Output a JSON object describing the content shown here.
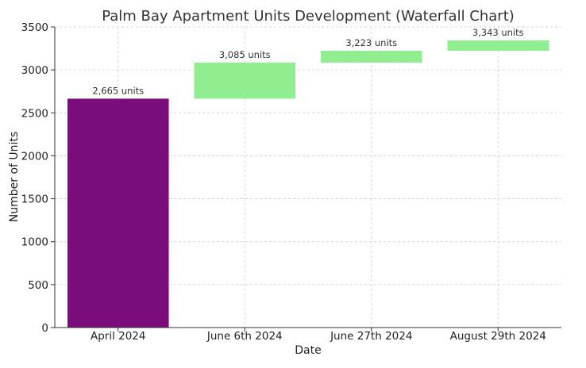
{
  "chart_data": {
    "type": "bar",
    "subtype": "waterfall",
    "title": "Palm Bay Apartment Units Development (Waterfall Chart)",
    "xlabel": "Date",
    "ylabel": "Number of Units",
    "ylim": [
      0,
      3500
    ],
    "yticks": [
      0,
      500,
      1000,
      1500,
      2000,
      2500,
      3000,
      3500
    ],
    "grid": true,
    "categories": [
      "April 2024",
      "June 6th 2024",
      "June 27th 2024",
      "August 29th 2024"
    ],
    "bars": [
      {
        "category": "April 2024",
        "start": 0,
        "end": 2665,
        "label": "2,665 units",
        "color": "#7b0c7b"
      },
      {
        "category": "June 6th 2024",
        "start": 2665,
        "end": 3085,
        "label": "3,085 units",
        "color": "#90ee90"
      },
      {
        "category": "June 27th 2024",
        "start": 3085,
        "end": 3223,
        "label": "3,223 units",
        "color": "#90ee90"
      },
      {
        "category": "August 29th 2024",
        "start": 3223,
        "end": 3343,
        "label": "3,343 units",
        "color": "#90ee90"
      }
    ]
  }
}
